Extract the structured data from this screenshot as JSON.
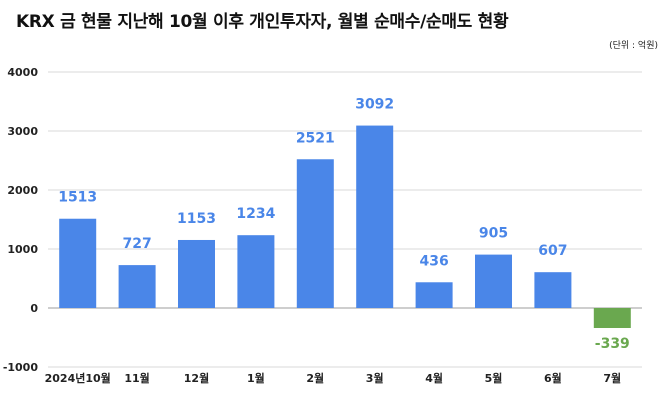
{
  "title": "KRX 금 현물 지난해 10월 이후 개인투자자, 월별 순매수/순매도 현황",
  "unit_note": "(단위 : 억원)",
  "colors": {
    "positive": "#4a86e8",
    "negative": "#6aa84f",
    "grid": "#d9d9d9"
  },
  "chart_data": {
    "type": "bar",
    "categories": [
      "2024년10월",
      "11월",
      "12월",
      "1월",
      "2월",
      "3월",
      "4월",
      "5월",
      "6월",
      "7월"
    ],
    "values": [
      1513,
      727,
      1153,
      1234,
      2521,
      3092,
      436,
      905,
      607,
      -339
    ],
    "data_labels": [
      "1513",
      "727",
      "1153",
      "1234",
      "2521",
      "3092",
      "436",
      "905",
      "607",
      "-339"
    ],
    "y_ticks": [
      "4000",
      "3000",
      "2000",
      "1000",
      "0",
      "-1000"
    ],
    "ylim": [
      -1000,
      4000
    ],
    "grid": true,
    "legend": false
  }
}
